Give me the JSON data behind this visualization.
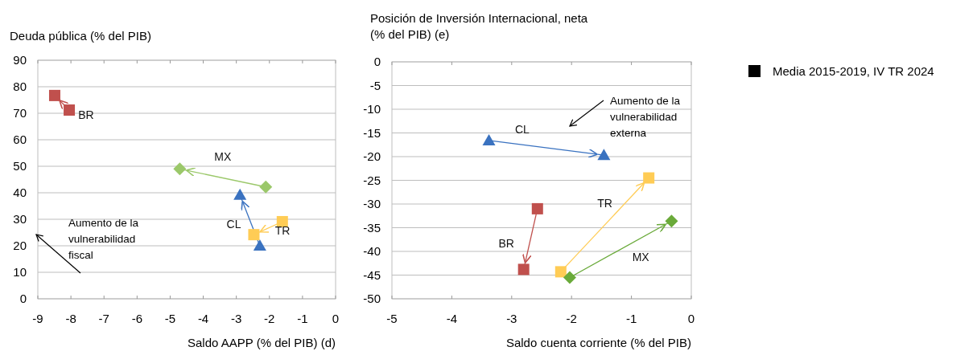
{
  "chart_data": [
    {
      "type": "line",
      "ylabel": "Deuda pública (% del PIB)",
      "xlabel": "Saldo AAPP (% del PIB) (d)",
      "xlim": [
        -9,
        0
      ],
      "xticks": [
        -9,
        -8,
        -7,
        -6,
        -5,
        -4,
        -3,
        -2,
        -1,
        0
      ],
      "ylim": [
        0,
        90
      ],
      "yticks": [
        0,
        10,
        20,
        30,
        40,
        50,
        60,
        70,
        80,
        90
      ],
      "grid": "y",
      "line_style": "solid",
      "series": [
        {
          "name": "BR",
          "color": "#c0504d",
          "marker": "square",
          "x": [
            -8.05,
            -8.49
          ],
          "values": [
            71.2,
            76.7
          ]
        },
        {
          "name": "MX",
          "color": "#9bc86a",
          "marker": "diamond",
          "x": [
            -2.11,
            -4.71
          ],
          "values": [
            42.2,
            49.0
          ]
        },
        {
          "name": "CL",
          "color": "#3a72c0",
          "marker": "triangle",
          "x": [
            -2.29,
            -2.89
          ],
          "values": [
            20.0,
            39.2
          ]
        },
        {
          "name": "TR",
          "color": "#ffcc55",
          "marker": "square",
          "x": [
            -1.61,
            -2.47
          ],
          "values": [
            29.1,
            24.2
          ]
        }
      ],
      "annotations": [
        "Aumento de la vulnerabilidad fiscal"
      ]
    },
    {
      "type": "line",
      "ylabel": "Posición de Inversión Internacional, neta (% del PIB) (e)",
      "xlabel": "Saldo cuenta corriente (% del PIB)",
      "xlim": [
        -5,
        0
      ],
      "xticks": [
        -5,
        -4,
        -3,
        -2,
        -1,
        0
      ],
      "ylim": [
        -50,
        0
      ],
      "yticks": [
        -50,
        -45,
        -40,
        -35,
        -30,
        -25,
        -20,
        -15,
        -10,
        -5,
        0
      ],
      "grid": "y",
      "line_style": "solid",
      "series": [
        {
          "name": "CL",
          "color": "#3a72c0",
          "marker": "triangle",
          "x": [
            -3.38,
            -1.46
          ],
          "values": [
            -16.6,
            -19.7
          ]
        },
        {
          "name": "BR",
          "color": "#c0504d",
          "marker": "square",
          "x": [
            -2.57,
            -2.8
          ],
          "values": [
            -31.0,
            -43.8
          ]
        },
        {
          "name": "TR",
          "color": "#ffcc55",
          "marker": "square",
          "x": [
            -2.18,
            -0.71
          ],
          "values": [
            -44.3,
            -24.5
          ]
        },
        {
          "name": "MX",
          "color": "#6aaa3a",
          "marker": "diamond",
          "x": [
            -2.03,
            -0.33
          ],
          "values": [
            -45.5,
            -33.6
          ]
        }
      ],
      "annotations": [
        "Aumento de la vulnerabilidad externa",
        "Media 2015-2019, IV TR 2024"
      ]
    }
  ]
}
